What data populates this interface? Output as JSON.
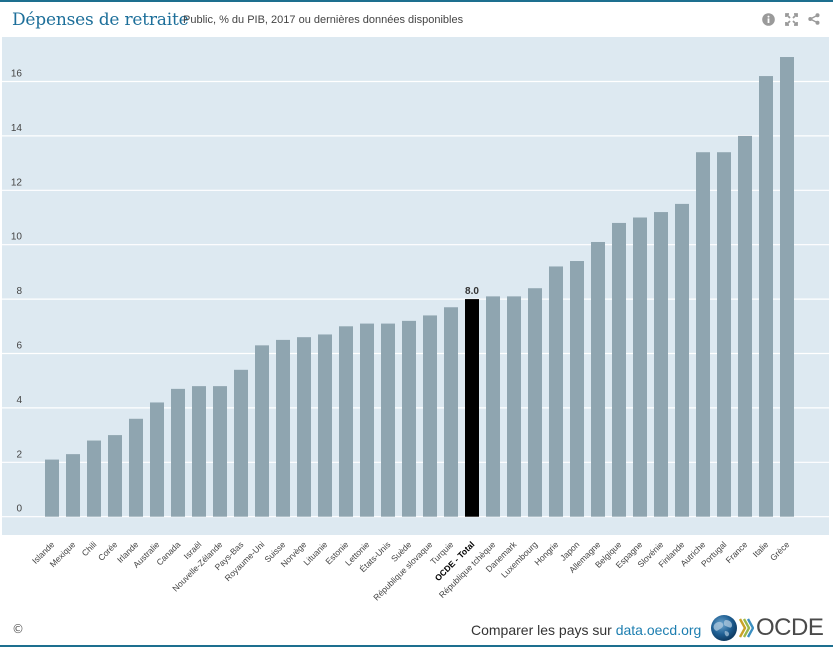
{
  "header": {
    "title": "Dépenses de retraite",
    "subtitle": "Public, % du PIB, 2017 ou dernières données disponibles",
    "icons": [
      "info-icon",
      "expand-icon",
      "share-icon"
    ]
  },
  "footer": {
    "copyright": "©",
    "compare_text": "Comparer les pays sur ",
    "compare_link": "data.oecd.org",
    "logo_text": "OCDE"
  },
  "colors": {
    "bar": "#8fa5b0",
    "highlight_bar": "#000000",
    "plot_background": "#dde9f1",
    "gridline": "#ffffff",
    "title": "#1d6f9a"
  },
  "chart_data": {
    "type": "bar",
    "title": "Dépenses de retraite",
    "subtitle": "Public, % du PIB, 2017 ou dernières données disponibles",
    "xlabel": "",
    "ylabel": "",
    "ylim": [
      0,
      16
    ],
    "yticks": [
      0,
      2,
      4,
      6,
      8,
      10,
      12,
      14,
      16
    ],
    "grid": true,
    "highlight": "OCDE - Total",
    "highlight_label": "8.0",
    "categories": [
      "Islande",
      "Mexique",
      "Chili",
      "Corée",
      "Irlande",
      "Australie",
      "Canada",
      "Israël",
      "Nouvelle-Zélande",
      "Pays-Bas",
      "Royaume-Uni",
      "Suisse",
      "Norvège",
      "Lituanie",
      "Estonie",
      "Lettonie",
      "États-Unis",
      "Suède",
      "République slovaque",
      "Turquie",
      "OCDE - Total",
      "République tchèque",
      "Danemark",
      "Luxembourg",
      "Hongrie",
      "Japon",
      "Allemagne",
      "Belgique",
      "Espagne",
      "Slovénie",
      "Finlande",
      "Autriche",
      "Portugal",
      "France",
      "Italie",
      "Grèce"
    ],
    "values": [
      2.1,
      2.3,
      2.8,
      3.0,
      3.6,
      4.2,
      4.7,
      4.8,
      4.8,
      5.4,
      6.3,
      6.5,
      6.6,
      6.7,
      7.0,
      7.1,
      7.1,
      7.2,
      7.4,
      7.7,
      8.0,
      8.1,
      8.1,
      8.4,
      9.2,
      9.4,
      10.1,
      10.8,
      11.0,
      11.2,
      11.5,
      13.4,
      13.4,
      14.0,
      16.2,
      16.9
    ]
  }
}
